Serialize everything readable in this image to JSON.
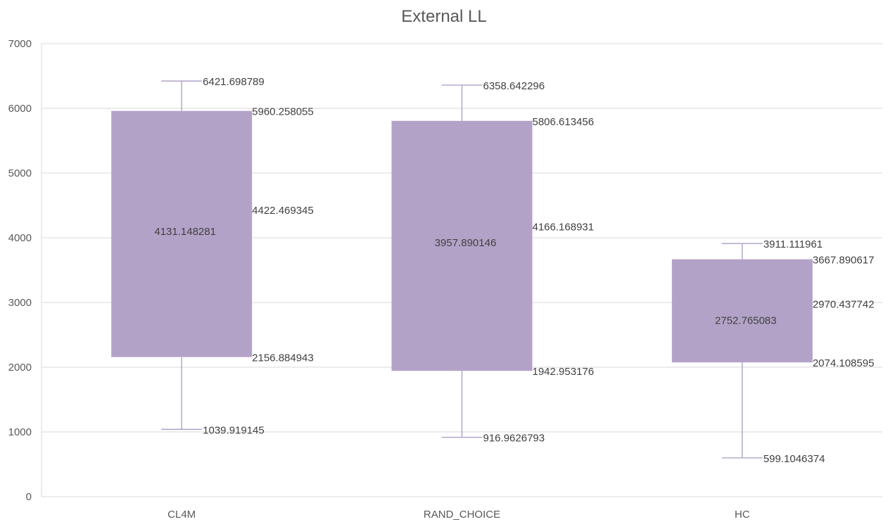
{
  "chart_data": {
    "type": "box",
    "title": "External LL",
    "xlabel": "",
    "ylabel": "",
    "ylim": [
      0,
      7000
    ],
    "yticks": [
      0,
      1000,
      2000,
      3000,
      4000,
      5000,
      6000,
      7000
    ],
    "grid": true,
    "legend": "none",
    "colors": {
      "box_fill": "#b3a2c8",
      "whisker": "#a99bc6",
      "grid": "#d9d9d9",
      "text": "#404040",
      "axis_text": "#595959"
    },
    "categories": [
      "CL4M",
      "RAND_CHOICE",
      "HC"
    ],
    "boxes": [
      {
        "category": "CL4M",
        "whisker_high": 6421.698789,
        "q3": 5960.258055,
        "median": 4422.469345,
        "mean": 4131.148281,
        "q1": 2156.884943,
        "whisker_low": 1039.919145,
        "labels": {
          "whisker_high": "6421.698789",
          "q3": "5960.258055",
          "median": "4422.469345",
          "mean": "4131.148281",
          "q1": "2156.884943",
          "whisker_low": "1039.919145"
        }
      },
      {
        "category": "RAND_CHOICE",
        "whisker_high": 6358.642296,
        "q3": 5806.613456,
        "median": 4166.168931,
        "mean": 3957.890146,
        "q1": 1942.953176,
        "whisker_low": 916.9626793,
        "labels": {
          "whisker_high": "6358.642296",
          "q3": "5806.613456",
          "median": "4166.168931",
          "mean": "3957.890146",
          "q1": "1942.953176",
          "whisker_low": "916.9626793"
        }
      },
      {
        "category": "HC",
        "whisker_high": 3911.111961,
        "q3": 3667.890617,
        "median": 2970.437742,
        "mean": 2752.765083,
        "q1": 2074.108595,
        "whisker_low": 599.1046374,
        "labels": {
          "whisker_high": "3911.111961",
          "q3": "3667.890617",
          "median": "2970.437742",
          "mean": "2752.765083",
          "q1": "2074.108595",
          "whisker_low": "599.1046374"
        }
      }
    ]
  }
}
